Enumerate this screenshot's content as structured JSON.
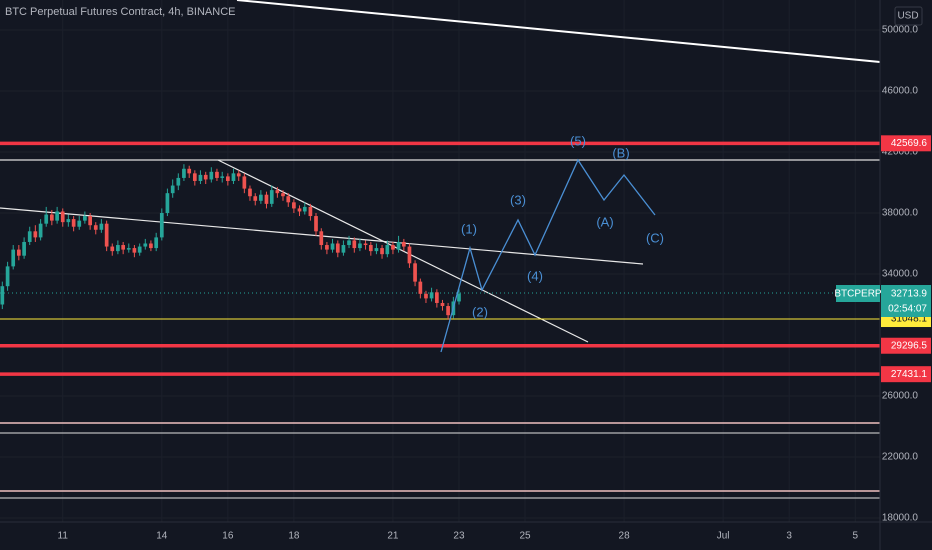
{
  "chart_data": {
    "type": "candlestick",
    "title": "BTC Perpetual Futures Contract, 4h, BINANCE",
    "currency": "USD",
    "symbol": "BTCPERP",
    "countdown": "02:54:07",
    "up_color": "#26a69a",
    "down_color": "#ef5350",
    "grid": true,
    "xlim": [
      9.1,
      35.75
    ],
    "ylim": [
      15902,
      51967
    ],
    "xticks": [
      11,
      14,
      16,
      18,
      21,
      23,
      25,
      28,
      {
        "value": 31,
        "label": "Jul"
      },
      {
        "value": 33,
        "label": "3"
      },
      {
        "value": 35,
        "label": "5"
      }
    ],
    "yticks": [
      {
        "value": 18000,
        "label": "18000.0"
      },
      {
        "value": 22000,
        "label": "22000.0"
      },
      {
        "value": 26000,
        "label": "26000.0"
      },
      {
        "value": 34000,
        "label": "34000.0"
      },
      {
        "value": 38000,
        "label": "38000.0"
      },
      {
        "value": 42000,
        "label": "42000.0"
      },
      {
        "value": 46000,
        "label": "46000.0"
      },
      {
        "value": 50000,
        "label": "50000.0"
      }
    ],
    "levels": [
      {
        "value": 42569.6,
        "color": "#f23645"
      },
      {
        "value": 31048.1,
        "color": "#ffeb3b"
      },
      {
        "value": 29296.5,
        "color": "#f23645"
      },
      {
        "value": 27431.1,
        "color": "#f23645"
      }
    ],
    "annotations": [
      "(1)",
      "(2)",
      "(3)",
      "(4)",
      "(5)",
      "(A)",
      "(B)",
      "(C)"
    ],
    "x": [
      9.17,
      9.33,
      9.5,
      9.67,
      9.83,
      10,
      10.17,
      10.33,
      10.5,
      10.67,
      10.83,
      11,
      11.17,
      11.33,
      11.5,
      11.67,
      11.83,
      12,
      12.17,
      12.33,
      12.5,
      12.67,
      12.83,
      13,
      13.17,
      13.33,
      13.5,
      13.67,
      13.83,
      14,
      14.17,
      14.33,
      14.5,
      14.67,
      14.83,
      15,
      15.17,
      15.33,
      15.5,
      15.67,
      15.83,
      16,
      16.17,
      16.33,
      16.5,
      16.67,
      16.83,
      17,
      17.17,
      17.33,
      17.5,
      17.67,
      17.83,
      18,
      18.17,
      18.33,
      18.5,
      18.67,
      18.83,
      19,
      19.17,
      19.33,
      19.5,
      19.67,
      19.83,
      20,
      20.17,
      20.33,
      20.5,
      20.67,
      20.83,
      21,
      21.17,
      21.33,
      21.5,
      21.67,
      21.83,
      22,
      22.17,
      22.33,
      22.5,
      22.67,
      22.83,
      23
    ],
    "open": [
      32000,
      33200,
      34500,
      35600,
      35200,
      36100,
      36800,
      36400,
      37300,
      37900,
      37500,
      38100,
      37400,
      37600,
      37100,
      37500,
      37800,
      37200,
      36900,
      37300,
      35800,
      35500,
      35900,
      35600,
      35700,
      35400,
      35800,
      36000,
      35700,
      36400,
      38000,
      39300,
      39800,
      40300,
      40900,
      40600,
      40100,
      40500,
      40200,
      40700,
      40300,
      40400,
      40100,
      40600,
      40400,
      39600,
      39100,
      38800,
      39200,
      38600,
      39500,
      39300,
      39100,
      38700,
      38300,
      38100,
      38400,
      37800,
      36800,
      35900,
      35600,
      36000,
      35400,
      35900,
      36200,
      35700,
      36000,
      35900,
      35500,
      35700,
      35300,
      35900,
      35600,
      36100,
      35800,
      34700,
      33500,
      32700,
      32400,
      32800,
      32100,
      31900,
      31300,
      32200
    ],
    "high": [
      33500,
      34800,
      35900,
      35900,
      36400,
      37100,
      37200,
      37600,
      38400,
      38200,
      38400,
      38300,
      37900,
      37800,
      37800,
      38100,
      38000,
      37400,
      37600,
      37500,
      36000,
      36200,
      36100,
      36000,
      35900,
      36000,
      36300,
      36200,
      36700,
      38300,
      39600,
      40200,
      40600,
      41200,
      41100,
      40800,
      40800,
      40700,
      41000,
      40900,
      40700,
      40600,
      40900,
      40800,
      40600,
      39800,
      39300,
      39500,
      39400,
      39800,
      39700,
      39500,
      39300,
      38900,
      38500,
      38700,
      38600,
      38000,
      37000,
      36100,
      36300,
      36200,
      36200,
      36500,
      36400,
      36300,
      36200,
      36100,
      36000,
      35900,
      36200,
      36100,
      36500,
      36300,
      36000,
      34900,
      33700,
      32900,
      33100,
      33000,
      32300,
      32100,
      32500,
      33000
    ],
    "low": [
      31700,
      32900,
      34300,
      34900,
      35000,
      35900,
      36100,
      36200,
      37100,
      37200,
      37300,
      37100,
      37100,
      36800,
      36900,
      37300,
      36900,
      36600,
      36700,
      35500,
      35200,
      35300,
      35300,
      35400,
      35100,
      35200,
      35600,
      35500,
      35500,
      36200,
      37800,
      39000,
      39500,
      40100,
      40300,
      39800,
      39900,
      39900,
      40000,
      40100,
      40000,
      39800,
      39900,
      40100,
      39300,
      38800,
      38500,
      38600,
      38300,
      38400,
      39000,
      38800,
      38400,
      38000,
      37800,
      37900,
      37500,
      36500,
      35600,
      35300,
      35400,
      35100,
      35200,
      35700,
      35400,
      35500,
      35600,
      35200,
      35300,
      35000,
      35100,
      35300,
      35400,
      35500,
      34400,
      33200,
      32400,
      32100,
      32200,
      31800,
      31600,
      31000,
      31100,
      32000
    ],
    "close": [
      33200,
      34500,
      35600,
      35200,
      36100,
      36800,
      36400,
      37300,
      37900,
      37500,
      38100,
      37400,
      37600,
      37100,
      37500,
      37800,
      37200,
      36900,
      37300,
      35800,
      35500,
      35900,
      35600,
      35700,
      35400,
      35800,
      36000,
      35700,
      36400,
      38000,
      39300,
      39800,
      40300,
      40900,
      40600,
      40100,
      40500,
      40200,
      40700,
      40300,
      40400,
      40100,
      40600,
      40400,
      39600,
      39100,
      38800,
      39200,
      38600,
      39500,
      39300,
      39100,
      38700,
      38300,
      38100,
      38400,
      37800,
      36800,
      35900,
      35600,
      36000,
      35400,
      35900,
      36200,
      35700,
      36000,
      35900,
      35500,
      35700,
      35300,
      35900,
      35600,
      36100,
      35800,
      34700,
      33500,
      32700,
      32400,
      32800,
      32100,
      31900,
      31300,
      32200,
      32713.9
    ]
  }
}
